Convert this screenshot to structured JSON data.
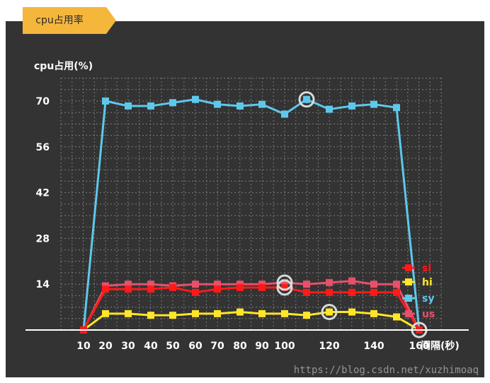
{
  "tab": {
    "label": "cpu占用率"
  },
  "watermark": "https://blog.csdn.net/xuzhimoaq",
  "chart_data": {
    "type": "line",
    "title": "",
    "ylabel": "cpu占用(%)",
    "xlabel": "间隔(秒)",
    "ylim": [
      0,
      77
    ],
    "yticks": [
      14,
      28,
      42,
      56,
      70
    ],
    "xticks": [
      10,
      20,
      30,
      40,
      50,
      60,
      70,
      80,
      90,
      100,
      120,
      140,
      160
    ],
    "xlim": [
      5,
      165
    ],
    "grid": true,
    "legend_position": "right",
    "x": [
      10,
      20,
      30,
      40,
      50,
      60,
      70,
      80,
      90,
      100,
      110,
      120,
      130,
      140,
      150,
      160
    ],
    "series": [
      {
        "name": "si",
        "color": "#ff1a1a",
        "values": [
          0,
          12.5,
          12.5,
          12.5,
          13,
          11.5,
          12.5,
          13,
          13,
          13,
          11.5,
          11.5,
          11.5,
          11.5,
          11.5,
          0
        ]
      },
      {
        "name": "hi",
        "color": "#ffe628",
        "values": [
          0,
          5,
          5,
          4.5,
          4.5,
          5,
          5,
          5.5,
          5,
          5,
          4.5,
          5.5,
          5.5,
          5,
          4,
          0
        ]
      },
      {
        "name": "sy",
        "color": "#5ec8ec",
        "values": [
          0,
          70,
          68.5,
          68.5,
          69.5,
          70.5,
          69,
          68.5,
          69,
          66,
          70.5,
          67.5,
          68.5,
          69,
          68,
          0
        ]
      },
      {
        "name": "us",
        "color": "#e8506a",
        "values": [
          0,
          13.5,
          14,
          14,
          13.5,
          14,
          14,
          14,
          14,
          14.5,
          14,
          14.5,
          15,
          14,
          14,
          0
        ]
      }
    ],
    "annotations": [
      {
        "series": "sy",
        "x": 110
      },
      {
        "series": "us",
        "x": 100
      },
      {
        "series": "si",
        "x": 100
      },
      {
        "series": "hi",
        "x": 120
      },
      {
        "series": "us",
        "x": 160
      }
    ]
  }
}
